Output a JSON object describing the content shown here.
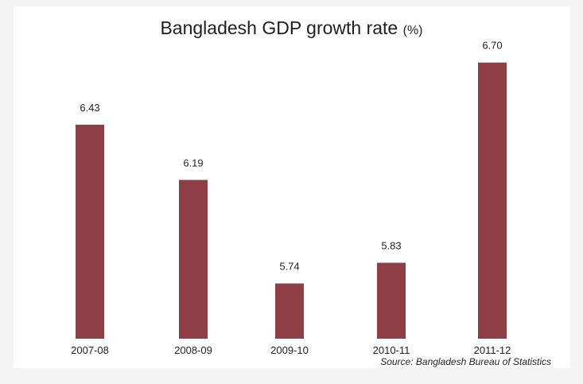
{
  "chart_data": {
    "type": "bar",
    "title": "Bangladesh GDP growth rate",
    "title_unit": "(%)",
    "categories": [
      "2007-08",
      "2008-09",
      "2009-10",
      "2010-11",
      "2011-12"
    ],
    "values": [
      6.43,
      6.19,
      5.74,
      5.83,
      6.7
    ],
    "value_labels": [
      "6.43",
      "6.19",
      "5.74",
      "5.83",
      "6.70"
    ],
    "ylim": [
      5.5,
      6.73
    ],
    "grid": false,
    "legend": "none",
    "bar_color": "#8e3e44",
    "source": "Source: Bangladesh Bureau of Statistics"
  }
}
